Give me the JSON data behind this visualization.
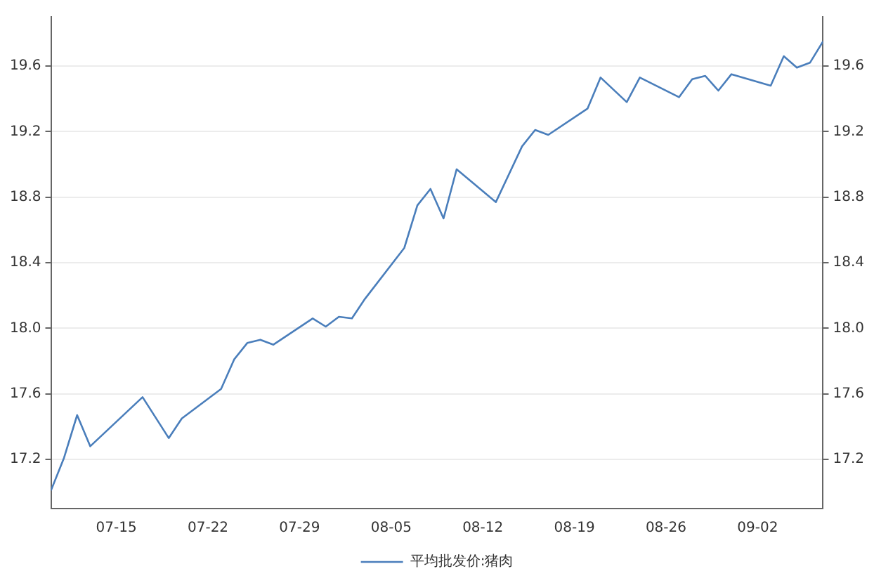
{
  "chart_data": {
    "type": "line",
    "x": [
      "--07-10",
      "--07-11",
      "--07-12",
      "--07-13",
      "--07-17",
      "--07-19",
      "--07-20",
      "--07-23",
      "--07-24",
      "--07-25",
      "--07-26",
      "--07-27",
      "--07-30",
      "--07-31",
      "--08-01",
      "--08-02",
      "--08-03",
      "--08-06",
      "--08-07",
      "--08-08",
      "--08-09",
      "--08-10",
      "--08-13",
      "--08-15",
      "--08-16",
      "--08-17",
      "--08-20",
      "--08-21",
      "--08-23",
      "--08-24",
      "--08-27",
      "--08-28",
      "--08-29",
      "--08-30",
      "--08-31",
      "--09-03",
      "--09-04",
      "--09-05",
      "--09-06",
      "--09-07"
    ],
    "series": [
      {
        "name": "平均批发价:猪肉",
        "color": "#4a7ebb",
        "values": [
          17.01,
          17.21,
          17.47,
          17.28,
          17.58,
          17.33,
          17.45,
          17.63,
          17.81,
          17.91,
          17.93,
          17.9,
          18.06,
          18.01,
          18.07,
          18.06,
          18.18,
          18.49,
          18.75,
          18.85,
          18.67,
          18.97,
          18.77,
          19.11,
          19.21,
          19.18,
          19.34,
          19.53,
          19.38,
          19.53,
          19.41,
          19.52,
          19.54,
          19.45,
          19.55,
          19.48,
          19.66,
          19.59,
          19.62,
          19.75
        ]
      }
    ],
    "xlim": [
      "--07-10",
      "--09-07"
    ],
    "xticks": [
      {
        "value": "--07-15",
        "label": "07-15"
      },
      {
        "value": "--07-22",
        "label": "07-22"
      },
      {
        "value": "--07-29",
        "label": "07-29"
      },
      {
        "value": "--08-05",
        "label": "08-05"
      },
      {
        "value": "--08-12",
        "label": "08-12"
      },
      {
        "value": "--08-19",
        "label": "08-19"
      },
      {
        "value": "--08-26",
        "label": "08-26"
      },
      {
        "value": "--09-02",
        "label": "09-02"
      }
    ],
    "ylim": [
      16.9,
      19.9
    ],
    "yticks": [
      17.2,
      17.6,
      {
        "value": 18,
        "label": "18.0"
      },
      18.4,
      18.8,
      19.2,
      19.6
    ],
    "y2lim": [
      16.9,
      19.9
    ],
    "y2ticks": [
      17.2,
      17.6,
      {
        "value": 18,
        "label": "18.0"
      },
      18.4,
      18.8,
      19.2,
      19.6
    ],
    "grid": "y",
    "legend": "bottom",
    "marker": "none",
    "line_style": "solid"
  }
}
